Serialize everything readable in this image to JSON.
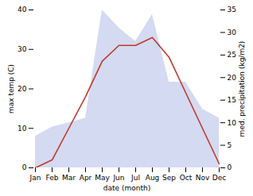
{
  "chart_data": {
    "type": "line",
    "categories": [
      "Jan",
      "Feb",
      "Mar",
      "Apr",
      "May",
      "Jun",
      "Jul",
      "Aug",
      "Sep",
      "Oct",
      "Nov",
      "Dec"
    ],
    "xlabel": "date (month)",
    "ylabel": "max temp (C)",
    "y2label": "med. precipitation (kg/m2)",
    "series": [
      {
        "type": "area",
        "axis": "y2",
        "color": "#b0bce8",
        "values": [
          7,
          9,
          10,
          11,
          35,
          31,
          28,
          34,
          19,
          19,
          13,
          11
        ]
      },
      {
        "type": "line",
        "color": "#c0392b",
        "values": [
          0,
          2,
          10,
          18,
          27,
          31,
          31,
          33,
          28,
          19,
          10,
          1
        ]
      }
    ],
    "ylim": [
      0,
      40
    ],
    "yticks": [
      0,
      10,
      20,
      30,
      40
    ],
    "y2lim": [
      0,
      35
    ],
    "y2ticks": [
      0,
      5,
      10,
      15,
      20,
      25,
      30,
      35
    ],
    "grid": false
  }
}
